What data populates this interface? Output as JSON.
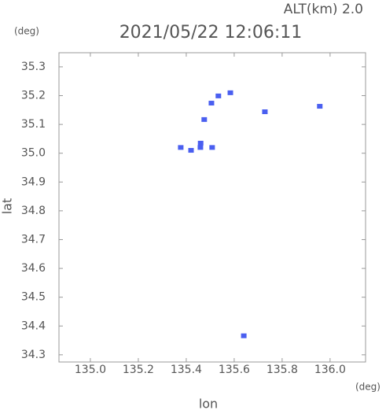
{
  "chart_data": {
    "type": "scatter",
    "title": "2021/05/22 12:06:11",
    "annotation": "ALT(km) 2.0",
    "y_unit": "(deg)",
    "x_unit": "(deg)",
    "x_label": "lon",
    "y_label": "lat",
    "color": "#4a5ff0",
    "series": [
      {
        "name": "points",
        "x": [
          135.377,
          135.42,
          135.459,
          135.508,
          135.46,
          135.475,
          135.505,
          135.534,
          135.584,
          135.728,
          135.957,
          135.64
        ],
        "values": [
          35.02,
          35.01,
          35.02,
          35.02,
          35.035,
          35.117,
          35.174,
          35.199,
          35.21,
          35.144,
          35.163,
          34.366
        ]
      }
    ],
    "xlim": [
      134.869,
      136.148
    ],
    "ylim": [
      34.275,
      35.349
    ],
    "xticks": [
      {
        "value": 135,
        "label": "135.0"
      },
      135.2,
      135.4,
      135.6,
      135.8,
      {
        "value": 136,
        "label": "136.0"
      }
    ],
    "yticks": [
      34.3,
      34.4,
      34.5,
      34.6,
      34.7,
      34.8,
      34.9,
      {
        "value": 35,
        "label": "35.0"
      },
      35.1,
      35.2,
      35.3
    ]
  }
}
